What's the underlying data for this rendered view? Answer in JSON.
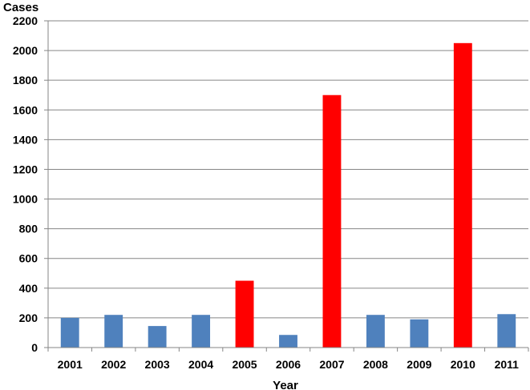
{
  "chart_data": {
    "type": "bar",
    "ylabel": "Cases",
    "xlabel": "Year",
    "categories": [
      "2001",
      "2002",
      "2003",
      "2004",
      "2005",
      "2006",
      "2007",
      "2008",
      "2009",
      "2010",
      "2011"
    ],
    "values": [
      200,
      220,
      145,
      220,
      450,
      85,
      1700,
      220,
      190,
      2050,
      225
    ],
    "ylim": [
      0,
      2200
    ],
    "yticks": [
      "0",
      "200",
      "400",
      "600",
      "800",
      "1000",
      "1200",
      "1400",
      "1600",
      "1800",
      "2000",
      "2200"
    ],
    "grid": true,
    "bar_colors": [
      "#4f81bd",
      "#4f81bd",
      "#4f81bd",
      "#4f81bd",
      "#ff0000",
      "#4f81bd",
      "#ff0000",
      "#4f81bd",
      "#4f81bd",
      "#ff0000",
      "#4f81bd"
    ]
  }
}
